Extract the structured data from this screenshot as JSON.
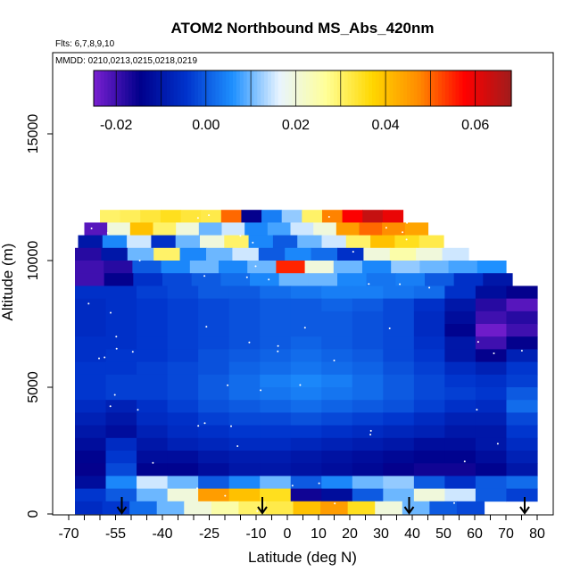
{
  "chart_data": {
    "type": "heatmap",
    "title": "ATOM2 Northbound MS_Abs_420nm",
    "flights_label": "Flts: 6,7,8,9,10",
    "dates_label": "MMDD: 0210,0213,0215,0218,0219",
    "xlabel": "Latitude (deg N)",
    "ylabel": "Altitude (m)",
    "xlim": [
      -70,
      80
    ],
    "ylim": [
      0,
      17500
    ],
    "x_ticks": [
      -70,
      -55,
      -40,
      -25,
      -10,
      0,
      10,
      20,
      30,
      40,
      50,
      60,
      70,
      80
    ],
    "y_ticks": [
      0,
      5000,
      10000,
      15000
    ],
    "colorbar": {
      "range": [
        -0.025,
        0.068
      ],
      "tick_values": [
        -0.02,
        0.0,
        0.02,
        0.04,
        0.06
      ],
      "tick_labels": [
        "-0.02",
        "0.00",
        "0.02",
        "0.04",
        "0.06"
      ],
      "colors": [
        "#7a1fd1",
        "#00008b",
        "#0033cc",
        "#1e90ff",
        "#e8f4ff",
        "#ffff99",
        "#ffd700",
        "#ff8c00",
        "#ff0000",
        "#a01c1c"
      ]
    },
    "flight_markers_lat": [
      -53,
      -8,
      39,
      76
    ],
    "layers": [
      {
        "alt_bottom": 11500,
        "alt_top": 12000,
        "lat_start": -60,
        "lat_end": 37,
        "values": [
          0.03,
          0.031,
          0.033,
          0.035,
          0.033,
          0.032,
          0.05,
          -0.015,
          0.004,
          0.012,
          0.03,
          0.048,
          0.058,
          0.064,
          0.06
        ]
      },
      {
        "alt_bottom": 11000,
        "alt_top": 11500,
        "lat_start": -65,
        "lat_end": 45,
        "values": [
          -0.022,
          0.02,
          0.04,
          0.03,
          0.02,
          0.01,
          0.015,
          0.005,
          0.008,
          0.015,
          0.02,
          0.045,
          0.05,
          0.047,
          0.044
        ]
      },
      {
        "alt_bottom": 10500,
        "alt_top": 11000,
        "lat_start": -67,
        "lat_end": 50,
        "values": [
          -0.01,
          0.005,
          0.015,
          -0.005,
          0.01,
          0.02,
          0.03,
          0.005,
          0.0,
          0.01,
          0.015,
          0.03,
          0.04,
          0.035,
          0.032
        ]
      },
      {
        "alt_bottom": 10000,
        "alt_top": 10500,
        "lat_start": -68,
        "lat_end": 58,
        "values": [
          -0.018,
          -0.01,
          0.01,
          0.03,
          0.005,
          0.01,
          0.015,
          0.0,
          0.005,
          0.002,
          -0.005,
          0.02,
          0.025,
          0.02,
          0.015
        ]
      },
      {
        "alt_bottom": 9500,
        "alt_top": 10000,
        "lat_start": -68,
        "lat_end": 70,
        "values": [
          -0.02,
          -0.018,
          0.0,
          0.005,
          0.01,
          0.005,
          0.01,
          0.055,
          0.02,
          0.01,
          0.005,
          0.012,
          0.01,
          0.008,
          0.006
        ]
      },
      {
        "alt_bottom": 9000,
        "alt_top": 9500,
        "lat_start": -68,
        "lat_end": 72,
        "values": [
          -0.02,
          -0.015,
          -0.005,
          -0.002,
          0.0,
          0.002,
          0.005,
          0.01,
          0.01,
          0.005,
          0.003,
          0.004,
          0.0,
          -0.005,
          -0.01
        ]
      },
      {
        "alt_bottom": 8500,
        "alt_top": 9000,
        "lat_start": -68,
        "lat_end": 80,
        "values": [
          -0.005,
          -0.005,
          -0.003,
          -0.002,
          0.0,
          0.0,
          0.002,
          0.003,
          0.004,
          0.004,
          0.003,
          0.002,
          -0.005,
          -0.012,
          -0.015
        ]
      },
      {
        "alt_bottom": 8000,
        "alt_top": 8500,
        "lat_start": -68,
        "lat_end": 80,
        "values": [
          -0.006,
          -0.005,
          -0.004,
          -0.003,
          -0.002,
          -0.001,
          0.0,
          0.0,
          0.001,
          0.0,
          -0.002,
          -0.005,
          -0.01,
          -0.018,
          -0.022
        ]
      },
      {
        "alt_bottom": 7500,
        "alt_top": 8000,
        "lat_start": -68,
        "lat_end": 80,
        "values": [
          -0.006,
          -0.005,
          -0.004,
          -0.003,
          -0.002,
          -0.001,
          0.0,
          0.0,
          0.0,
          -0.001,
          -0.002,
          -0.006,
          -0.012,
          -0.02,
          -0.018
        ]
      },
      {
        "alt_bottom": 7000,
        "alt_top": 7500,
        "lat_start": -68,
        "lat_end": 80,
        "values": [
          -0.006,
          -0.005,
          -0.004,
          -0.003,
          -0.002,
          -0.001,
          0.0,
          0.0,
          0.0,
          -0.001,
          -0.002,
          -0.006,
          -0.014,
          -0.024,
          -0.02
        ]
      },
      {
        "alt_bottom": 6500,
        "alt_top": 7000,
        "lat_start": -68,
        "lat_end": 80,
        "values": [
          -0.005,
          -0.005,
          -0.004,
          -0.003,
          -0.002,
          -0.001,
          0.0,
          0.001,
          0.0,
          -0.001,
          -0.002,
          -0.005,
          -0.01,
          -0.02,
          -0.015
        ]
      },
      {
        "alt_bottom": 6000,
        "alt_top": 6500,
        "lat_start": -68,
        "lat_end": 80,
        "values": [
          -0.005,
          -0.004,
          -0.004,
          -0.003,
          -0.001,
          0.0,
          0.001,
          0.002,
          0.001,
          0.0,
          -0.002,
          -0.004,
          -0.01,
          -0.015,
          -0.008
        ]
      },
      {
        "alt_bottom": 5500,
        "alt_top": 6000,
        "lat_start": -68,
        "lat_end": 80,
        "values": [
          -0.004,
          -0.004,
          -0.003,
          -0.002,
          -0.001,
          0.001,
          0.002,
          0.003,
          0.002,
          0.001,
          -0.001,
          -0.003,
          -0.006,
          -0.008,
          -0.004
        ]
      },
      {
        "alt_bottom": 5000,
        "alt_top": 5500,
        "lat_start": -68,
        "lat_end": 80,
        "values": [
          -0.004,
          -0.003,
          -0.003,
          -0.002,
          0.0,
          0.002,
          0.004,
          0.005,
          0.004,
          0.002,
          0.0,
          -0.002,
          -0.004,
          -0.005,
          -0.003
        ]
      },
      {
        "alt_bottom": 4500,
        "alt_top": 5000,
        "lat_start": -68,
        "lat_end": 80,
        "values": [
          -0.004,
          -0.003,
          -0.003,
          -0.002,
          0.0,
          0.002,
          0.003,
          0.004,
          0.003,
          0.002,
          0.0,
          -0.002,
          -0.003,
          -0.004,
          0.0
        ]
      },
      {
        "alt_bottom": 4000,
        "alt_top": 4500,
        "lat_start": -68,
        "lat_end": 80,
        "values": [
          -0.006,
          -0.008,
          -0.005,
          -0.003,
          -0.001,
          0.0,
          0.001,
          0.002,
          0.001,
          0.0,
          -0.001,
          -0.003,
          -0.005,
          -0.006,
          0.002
        ]
      },
      {
        "alt_bottom": 3500,
        "alt_top": 4000,
        "lat_start": -68,
        "lat_end": 80,
        "values": [
          -0.008,
          -0.01,
          -0.006,
          -0.005,
          -0.003,
          -0.002,
          -0.002,
          -0.001,
          -0.002,
          -0.003,
          -0.004,
          -0.006,
          -0.008,
          -0.008,
          -0.002
        ]
      },
      {
        "alt_bottom": 3000,
        "alt_top": 3500,
        "lat_start": -68,
        "lat_end": 80,
        "values": [
          -0.01,
          -0.012,
          -0.008,
          -0.006,
          -0.005,
          -0.004,
          -0.004,
          -0.004,
          -0.005,
          -0.006,
          -0.007,
          -0.008,
          -0.01,
          -0.01,
          -0.004
        ]
      },
      {
        "alt_bottom": 2500,
        "alt_top": 3000,
        "lat_start": -68,
        "lat_end": 80,
        "values": [
          -0.012,
          -0.006,
          -0.01,
          -0.008,
          -0.007,
          -0.006,
          -0.006,
          -0.007,
          -0.008,
          -0.009,
          -0.01,
          -0.012,
          -0.012,
          -0.01,
          -0.006
        ]
      },
      {
        "alt_bottom": 2000,
        "alt_top": 2500,
        "lat_start": -68,
        "lat_end": 80,
        "values": [
          -0.014,
          -0.004,
          -0.012,
          -0.012,
          -0.01,
          -0.009,
          -0.009,
          -0.01,
          -0.011,
          -0.012,
          -0.013,
          -0.014,
          -0.014,
          -0.012,
          -0.008
        ]
      },
      {
        "alt_bottom": 1500,
        "alt_top": 2000,
        "lat_start": -68,
        "lat_end": 80,
        "values": [
          -0.015,
          -0.002,
          -0.014,
          -0.014,
          -0.012,
          -0.01,
          -0.01,
          -0.011,
          -0.012,
          -0.013,
          -0.015,
          -0.016,
          -0.016,
          -0.014,
          -0.01
        ]
      },
      {
        "alt_bottom": 1000,
        "alt_top": 1500,
        "lat_start": -68,
        "lat_end": 80,
        "values": [
          -0.012,
          0.005,
          0.015,
          0.01,
          0.0,
          0.005,
          0.01,
          0.0,
          0.005,
          0.01,
          0.012,
          0.0,
          -0.005,
          0.0,
          0.002
        ]
      },
      {
        "alt_bottom": 500,
        "alt_top": 1000,
        "lat_start": -68,
        "lat_end": 80,
        "values": [
          -0.004,
          0.0,
          0.01,
          0.02,
          0.045,
          0.04,
          0.035,
          -0.016,
          -0.012,
          0.0,
          0.01,
          0.02,
          0.015,
          0.0,
          -0.003
        ]
      },
      {
        "alt_bottom": 0,
        "alt_top": 500,
        "lat_start": -68,
        "lat_end": 63,
        "values": [
          -0.006,
          -0.004,
          0.002,
          0.01,
          0.02,
          0.025,
          0.03,
          0.032,
          0.04,
          0.045,
          0.035,
          0.02,
          0.01,
          0.0,
          -0.002
        ]
      }
    ]
  }
}
